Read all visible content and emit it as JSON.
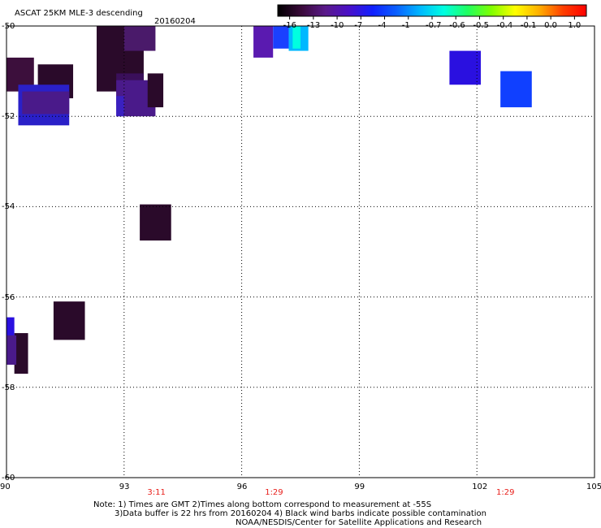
{
  "header": {
    "product": "ASCAT 25KM MLE-3 descending",
    "date": "20160204"
  },
  "colorbar": {
    "labels": [
      "-16",
      "-13",
      "-10",
      "-7",
      "-4",
      "-1",
      "-0.7",
      "-0.6",
      "-0.5",
      "-0.4",
      "-0.1",
      "0.0",
      "1.0"
    ],
    "colors": [
      "#000000",
      "#3a0a3a",
      "#5a1a8a",
      "#4a10c8",
      "#1020ff",
      "#0a60ff",
      "#00b8ff",
      "#00ffe0",
      "#20ff60",
      "#80ff00",
      "#ffff00",
      "#ffb000",
      "#ff4000",
      "#ff0000"
    ]
  },
  "map": {
    "lon_ticks": [
      "90",
      "93",
      "96",
      "99",
      "102",
      "105"
    ],
    "lat_ticks": [
      "-50",
      "-52",
      "-54",
      "-56",
      "-58",
      "-60"
    ],
    "lon_range": [
      90,
      105
    ],
    "lat_range": [
      -60,
      -50
    ],
    "pass_times": [
      {
        "time": "3:11",
        "lon": 93.8
      },
      {
        "time": "1:29",
        "lon": 96.8
      },
      {
        "time": "1:29",
        "lon": 102.7
      }
    ],
    "cells": [
      {
        "lon": [
          90.0,
          90.7
        ],
        "lat": [
          -50.7,
          -51.45
        ],
        "color": "#3c0f3c"
      },
      {
        "lon": [
          90.8,
          91.7
        ],
        "lat": [
          -50.85,
          -51.6
        ],
        "color": "#2a0a2a"
      },
      {
        "lon": [
          90.3,
          91.6
        ],
        "lat": [
          -51.3,
          -52.2
        ],
        "color": "#2a20c8"
      },
      {
        "lon": [
          90.4,
          91.6
        ],
        "lat": [
          -51.45,
          -51.95
        ],
        "color": "#4a1a8a"
      },
      {
        "lon": [
          92.3,
          93.5
        ],
        "lat": [
          -50.0,
          -51.45
        ],
        "color": "#2a0a2a"
      },
      {
        "lon": [
          93.0,
          93.8
        ],
        "lat": [
          -50.0,
          -50.55
        ],
        "color": "#4a1a6a"
      },
      {
        "lon": [
          92.8,
          93.5
        ],
        "lat": [
          -51.05,
          -51.75
        ],
        "color": "#3a0f5a"
      },
      {
        "lon": [
          92.8,
          93.8
        ],
        "lat": [
          -51.2,
          -52.0
        ],
        "color": "#4a1a8a"
      },
      {
        "lon": [
          93.6,
          94.0
        ],
        "lat": [
          -51.05,
          -51.8
        ],
        "color": "#2a0a2a"
      },
      {
        "lon": [
          92.8,
          93.0
        ],
        "lat": [
          -51.55,
          -52.0
        ],
        "color": "#3a20c0"
      },
      {
        "lon": [
          96.3,
          96.8
        ],
        "lat": [
          -50.0,
          -50.7
        ],
        "color": "#5a1ab0"
      },
      {
        "lon": [
          96.8,
          97.2
        ],
        "lat": [
          -50.0,
          -50.5
        ],
        "color": "#1a40ff"
      },
      {
        "lon": [
          97.2,
          97.7
        ],
        "lat": [
          -50.0,
          -50.55
        ],
        "color": "#00b8ff"
      },
      {
        "lon": [
          97.3,
          97.5
        ],
        "lat": [
          -50.0,
          -50.5
        ],
        "color": "#00ffe0"
      },
      {
        "lon": [
          101.3,
          102.1
        ],
        "lat": [
          -50.55,
          -51.3
        ],
        "color": "#2a10e0"
      },
      {
        "lon": [
          102.6,
          103.4
        ],
        "lat": [
          -51.0,
          -51.8
        ],
        "color": "#1040ff"
      },
      {
        "lon": [
          93.4,
          94.2
        ],
        "lat": [
          -53.95,
          -54.75
        ],
        "color": "#2a0a2a"
      },
      {
        "lon": [
          91.2,
          92.0
        ],
        "lat": [
          -56.1,
          -56.95
        ],
        "color": "#2a0a2a"
      },
      {
        "lon": [
          90.0,
          90.2
        ],
        "lat": [
          -56.45,
          -57.0
        ],
        "color": "#2a10e0"
      },
      {
        "lon": [
          90.2,
          90.55
        ],
        "lat": [
          -56.8,
          -57.7
        ],
        "color": "#2a0a2a"
      },
      {
        "lon": [
          90.0,
          90.25
        ],
        "lat": [
          -56.85,
          -57.5
        ],
        "color": "#4a1a8a"
      }
    ]
  },
  "notes": {
    "line1": "Note: 1) Times are GMT 2)Times along bottom correspond to measurement at -55S",
    "line2": "3)Data buffer is 22 hrs from 20160204 4) Black wind barbs indicate possible contamination",
    "line3": "NOAA/NESDIS/Center for Satellite Applications and Research"
  }
}
